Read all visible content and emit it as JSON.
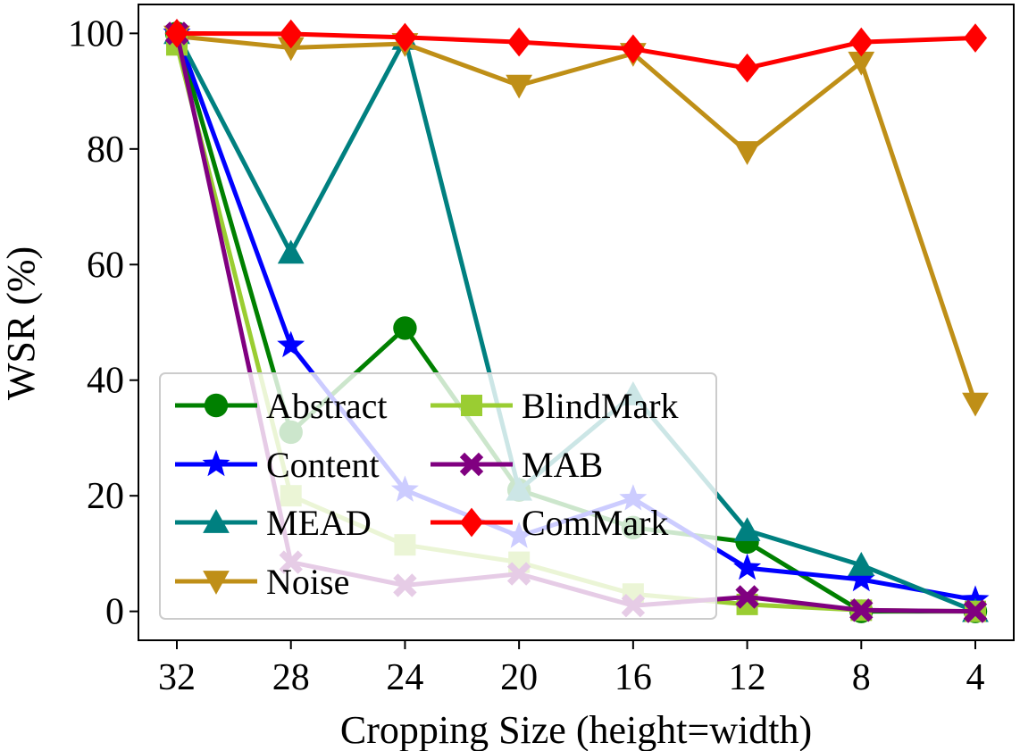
{
  "chart_data": {
    "type": "line",
    "title": "",
    "xlabel": "Cropping Size (height=width)",
    "ylabel": "WSR (%)",
    "categories": [
      "32",
      "28",
      "24",
      "20",
      "16",
      "12",
      "8",
      "4"
    ],
    "ylim": [
      -5,
      105
    ],
    "yticks": [
      "0",
      "20",
      "40",
      "60",
      "80",
      "100"
    ],
    "grid": false,
    "legend": {
      "placement": "lower-left",
      "columns": 2,
      "framed": true
    },
    "series": [
      {
        "name": "Abstract",
        "color": "#008000",
        "marker": "circle",
        "values": [
          100,
          31,
          49,
          21,
          14.5,
          12,
          0,
          0
        ]
      },
      {
        "name": "Content",
        "color": "#0000ff",
        "marker": "star",
        "values": [
          100,
          46,
          21,
          13,
          19.5,
          7.5,
          5.5,
          2
        ]
      },
      {
        "name": "MEAD",
        "color": "#008080",
        "marker": "triangle-up",
        "values": [
          100,
          62,
          99,
          21,
          37.5,
          14,
          8,
          0
        ]
      },
      {
        "name": "Noise",
        "color": "#bf8f17",
        "marker": "triangle-down",
        "values": [
          99.5,
          97.5,
          98.2,
          91,
          96.5,
          79.5,
          95,
          36
        ]
      },
      {
        "name": "BlindMark",
        "color": "#9acd32",
        "marker": "square",
        "values": [
          98,
          20,
          11.5,
          8.5,
          3,
          1.2,
          0.2,
          0
        ]
      },
      {
        "name": "MAB",
        "color": "#800080",
        "marker": "x",
        "values": [
          100,
          8.5,
          4.5,
          6.5,
          1,
          2.5,
          0.2,
          0
        ]
      },
      {
        "name": "ComMark",
        "color": "#ff0000",
        "marker": "diamond",
        "values": [
          100,
          99.9,
          99.3,
          98.5,
          97.3,
          94,
          98.5,
          99.2
        ]
      }
    ]
  }
}
